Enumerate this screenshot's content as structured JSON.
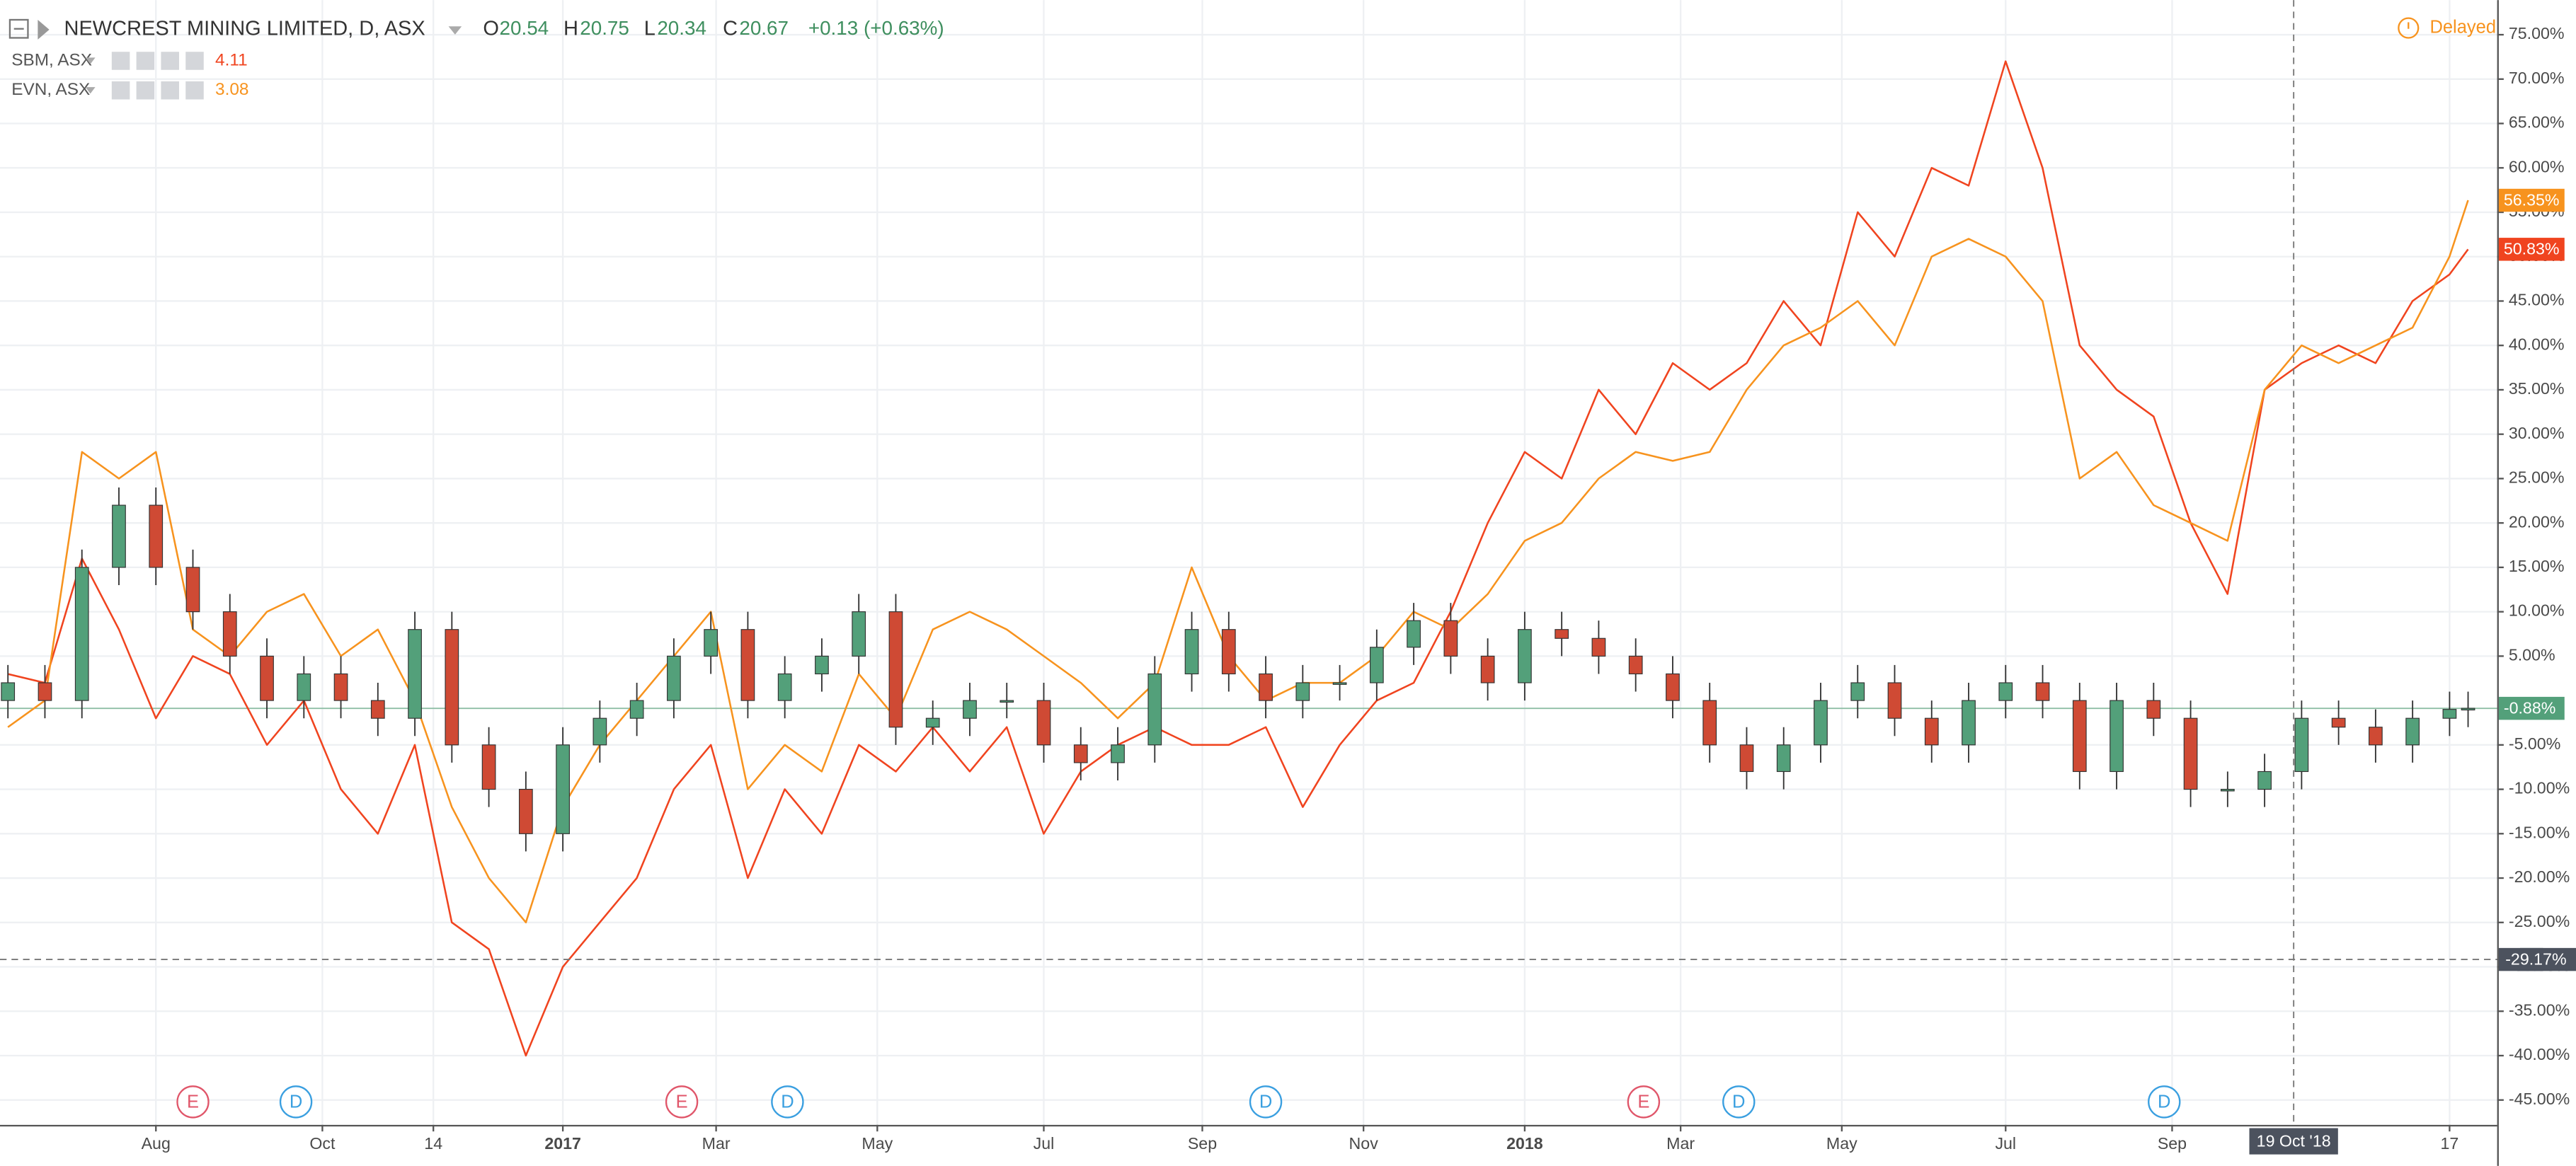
{
  "chart_data": {
    "type": "candlestick",
    "title": "NEWCREST MINING LIMITED, D, ASX",
    "header_ohlc": [
      {
        "label": "O",
        "value": 20.54
      },
      {
        "label": "H",
        "value": 20.75
      },
      {
        "label": "L",
        "value": 20.34
      },
      {
        "label": "C",
        "value": 20.67
      }
    ],
    "change": "+0.13 (+0.63%)",
    "status": "Delayed",
    "up_color": "#53a07a",
    "down_color": "#cf4a34",
    "last_label": "-0.88%",
    "x": [
      "2016-06-06",
      "2016-06-20",
      "2016-07-04",
      "2016-07-18",
      "2016-08-01",
      "2016-08-15",
      "2016-08-29",
      "2016-09-12",
      "2016-09-26",
      "2016-10-10",
      "2016-10-24",
      "2016-11-07",
      "2016-11-21",
      "2016-12-05",
      "2016-12-19",
      "2017-01-02",
      "2017-01-16",
      "2017-01-30",
      "2017-02-13",
      "2017-02-27",
      "2017-03-13",
      "2017-03-27",
      "2017-04-10",
      "2017-04-24",
      "2017-05-08",
      "2017-05-22",
      "2017-06-05",
      "2017-06-19",
      "2017-07-03",
      "2017-07-17",
      "2017-07-31",
      "2017-08-14",
      "2017-08-28",
      "2017-09-11",
      "2017-09-25",
      "2017-10-09",
      "2017-10-23",
      "2017-11-06",
      "2017-11-20",
      "2017-12-04",
      "2017-12-18",
      "2018-01-01",
      "2018-01-15",
      "2018-01-29",
      "2018-02-12",
      "2018-02-26",
      "2018-03-12",
      "2018-03-26",
      "2018-04-09",
      "2018-04-23",
      "2018-05-07",
      "2018-05-21",
      "2018-06-04",
      "2018-06-18",
      "2018-07-02",
      "2018-07-16",
      "2018-07-30",
      "2018-08-13",
      "2018-08-27",
      "2018-09-10",
      "2018-09-24",
      "2018-10-08",
      "2018-10-22",
      "2018-11-05",
      "2018-11-19",
      "2018-12-03",
      "2018-12-17",
      "2018-12-24"
    ],
    "open": [
      0,
      2,
      0,
      15,
      22,
      15,
      10,
      5,
      0,
      3,
      0,
      -2,
      8,
      -5,
      -10,
      -15,
      -5,
      -2,
      0,
      5,
      8,
      0,
      3,
      5,
      10,
      -3,
      -2,
      0,
      0,
      -5,
      -7,
      -5,
      3,
      8,
      3,
      0,
      2,
      2,
      6,
      9,
      5,
      2,
      8,
      7,
      5,
      3,
      0,
      -5,
      -8,
      -5,
      0,
      2,
      -2,
      -5,
      0,
      2,
      0,
      -8,
      0,
      -2,
      -10,
      -10,
      -8,
      -2,
      -3,
      -5,
      -2,
      -1
    ],
    "high": [
      4,
      4,
      17,
      24,
      24,
      17,
      12,
      7,
      5,
      5,
      2,
      10,
      10,
      -3,
      -8,
      -3,
      0,
      2,
      7,
      10,
      10,
      5,
      7,
      12,
      12,
      0,
      2,
      2,
      2,
      -3,
      -3,
      5,
      10,
      10,
      5,
      4,
      4,
      8,
      11,
      11,
      7,
      10,
      10,
      9,
      7,
      5,
      2,
      -3,
      -3,
      2,
      4,
      4,
      0,
      2,
      4,
      4,
      2,
      2,
      2,
      0,
      -8,
      -6,
      0,
      0,
      -1,
      0,
      1,
      1
    ],
    "low": [
      -2,
      -2,
      -2,
      13,
      13,
      8,
      3,
      -2,
      -2,
      -2,
      -4,
      -4,
      -7,
      -12,
      -17,
      -17,
      -7,
      -4,
      -2,
      3,
      -2,
      -2,
      1,
      3,
      -5,
      -5,
      -4,
      -2,
      -7,
      -9,
      -9,
      -7,
      1,
      1,
      -2,
      -2,
      0,
      0,
      4,
      3,
      0,
      0,
      5,
      3,
      1,
      -2,
      -7,
      -10,
      -10,
      -7,
      -2,
      -4,
      -7,
      -7,
      -2,
      -2,
      -10,
      -10,
      -4,
      -12,
      -12,
      -12,
      -10,
      -5,
      -7,
      -7,
      -4,
      -3
    ],
    "close": [
      2,
      0,
      15,
      22,
      15,
      10,
      5,
      0,
      3,
      0,
      -2,
      8,
      -5,
      -10,
      -15,
      -5,
      -2,
      0,
      5,
      8,
      0,
      3,
      5,
      10,
      -3,
      -2,
      0,
      0,
      -5,
      -7,
      -5,
      3,
      8,
      3,
      0,
      2,
      2,
      6,
      9,
      5,
      2,
      8,
      7,
      5,
      3,
      0,
      -5,
      -8,
      -5,
      0,
      2,
      -2,
      -5,
      0,
      2,
      0,
      -8,
      0,
      -2,
      -10,
      -10,
      -8,
      -2,
      -3,
      -5,
      -2,
      -1,
      -0.88
    ],
    "series": [
      {
        "name": "SBM, ASX",
        "price": 4.11,
        "color": "#f0441f",
        "last_label": "50.83%",
        "values": [
          3,
          2,
          16,
          8,
          -2,
          5,
          3,
          -5,
          0,
          -10,
          -15,
          -5,
          -25,
          -28,
          -40,
          -30,
          -25,
          -20,
          -10,
          -5,
          -20,
          -10,
          -15,
          -5,
          -8,
          -3,
          -8,
          -3,
          -15,
          -8,
          -5,
          -3,
          -5,
          -5,
          -3,
          -12,
          -5,
          0,
          2,
          10,
          20,
          28,
          25,
          35,
          30,
          38,
          35,
          38,
          45,
          40,
          55,
          50,
          60,
          58,
          72,
          60,
          40,
          35,
          32,
          20,
          12,
          35,
          38,
          40,
          38,
          45,
          48,
          50.83
        ]
      },
      {
        "name": "EVN, ASX",
        "price": 3.08,
        "color": "#f7931e",
        "last_label": "56.35%",
        "values": [
          -3,
          0,
          28,
          25,
          28,
          8,
          5,
          10,
          12,
          5,
          8,
          0,
          -12,
          -20,
          -25,
          -12,
          -5,
          0,
          5,
          10,
          -10,
          -5,
          -8,
          3,
          -2,
          8,
          10,
          8,
          5,
          2,
          -2,
          2,
          15,
          5,
          0,
          2,
          2,
          5,
          10,
          8,
          12,
          18,
          20,
          25,
          28,
          27,
          28,
          35,
          40,
          42,
          45,
          40,
          50,
          52,
          50,
          45,
          25,
          28,
          22,
          20,
          18,
          35,
          40,
          38,
          40,
          42,
          50,
          56.35
        ]
      }
    ],
    "xlim": [
      "2016-06-03",
      "2019-01-04"
    ],
    "xticks": [
      {
        "value": "2016-08-01",
        "label": "Aug"
      },
      {
        "value": "2016-10-03",
        "label": "Oct"
      },
      {
        "value": "2016-11-14",
        "label": "14"
      },
      {
        "value": "2017-01-02",
        "label": "2017"
      },
      {
        "value": "2017-03-01",
        "label": "Mar"
      },
      {
        "value": "2017-05-01",
        "label": "May"
      },
      {
        "value": "2017-07-03",
        "label": "Jul"
      },
      {
        "value": "2017-09-01",
        "label": "Sep"
      },
      {
        "value": "2017-11-01",
        "label": "Nov"
      },
      {
        "value": "2018-01-01",
        "label": "2018"
      },
      {
        "value": "2018-03-01",
        "label": "Mar"
      },
      {
        "value": "2018-05-01",
        "label": "May"
      },
      {
        "value": "2018-07-02",
        "label": "Jul"
      },
      {
        "value": "2018-09-03",
        "label": "Sep"
      },
      {
        "value": "2018-12-17",
        "label": "17"
      }
    ],
    "ylim": [
      -47.8,
      78.9
    ],
    "yticks": [
      {
        "value": 75,
        "label": "75.00%"
      },
      {
        "value": 70,
        "label": "70.00%"
      },
      {
        "value": 65,
        "label": "65.00%"
      },
      {
        "value": 60,
        "label": "60.00%"
      },
      {
        "value": 55,
        "label": "55.00%"
      },
      {
        "value": 50,
        "label": "50.00%"
      },
      {
        "value": 45,
        "label": "45.00%"
      },
      {
        "value": 40,
        "label": "40.00%"
      },
      {
        "value": 35,
        "label": "35.00%"
      },
      {
        "value": 30,
        "label": "30.00%"
      },
      {
        "value": 25,
        "label": "25.00%"
      },
      {
        "value": 20,
        "label": "20.00%"
      },
      {
        "value": 15,
        "label": "15.00%"
      },
      {
        "value": 10,
        "label": "10.00%"
      },
      {
        "value": 5,
        "label": "5.00%"
      },
      {
        "value": -5,
        "label": "-5.00%"
      },
      {
        "value": -10,
        "label": "-10.00%"
      },
      {
        "value": -15,
        "label": "-15.00%"
      },
      {
        "value": -20,
        "label": "-20.00%"
      },
      {
        "value": -25,
        "label": "-25.00%"
      },
      {
        "value": -30,
        "label": "-30.00%"
      },
      {
        "value": -35,
        "label": "-35.00%"
      },
      {
        "value": -40,
        "label": "-40.00%"
      },
      {
        "value": -45,
        "label": "-45.00%"
      }
    ],
    "grid": true,
    "events": [
      {
        "label": "E",
        "date": "2016-08-15"
      },
      {
        "label": "D",
        "date": "2016-09-23"
      },
      {
        "label": "E",
        "date": "2017-02-16"
      },
      {
        "label": "D",
        "date": "2017-03-28"
      },
      {
        "label": "D",
        "date": "2017-09-25"
      },
      {
        "label": "E",
        "date": "2018-02-15"
      },
      {
        "label": "D",
        "date": "2018-03-23"
      },
      {
        "label": "D",
        "date": "2018-08-31"
      }
    ],
    "crosshair": {
      "value": -29.17,
      "label": "-29.17%",
      "date": "2018-10-19",
      "date_label": "19 Oct '18"
    }
  }
}
